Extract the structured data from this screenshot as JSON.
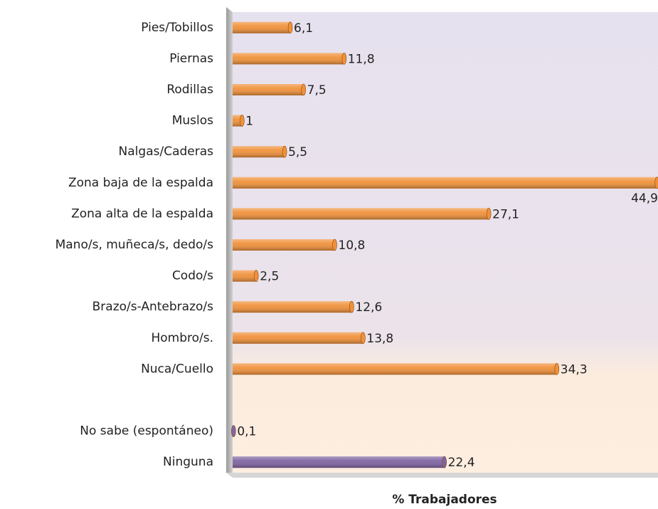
{
  "chart_data": {
    "type": "hbar",
    "categories": [
      "Pies/Tobillos",
      "Piernas",
      "Rodillas",
      "Muslos",
      "Nalgas/Caderas",
      "Zona baja de la espalda",
      "Zona alta de la espalda",
      "Mano/s, muñeca/s, dedo/s",
      "Codo/s",
      "Brazo/s-Antebrazo/s",
      "Hombro/s.",
      "Nuca/Cuello",
      null,
      "No sabe (espontáneo)",
      "Ninguna"
    ],
    "values": [
      6.1,
      11.8,
      7.5,
      1,
      5.5,
      44.9,
      27.1,
      10.8,
      2.5,
      12.6,
      13.8,
      34.3,
      null,
      0.1,
      22.4
    ],
    "value_labels": [
      "6,1",
      "11,8",
      "7,5",
      "1",
      "5,5",
      "44,9",
      "27,1",
      "10,8",
      "2,5",
      "12,6",
      "13,8",
      "34,3",
      null,
      "0,1",
      "22,4"
    ],
    "colors": [
      "#f0913a",
      "#f0913a",
      "#f0913a",
      "#f0913a",
      "#f0913a",
      "#f0913a",
      "#f0913a",
      "#f0913a",
      "#f0913a",
      "#f0913a",
      "#f0913a",
      "#f0913a",
      null,
      "#8064a2",
      "#8064a2"
    ],
    "xlim": [
      0,
      45
    ],
    "xlabel": "% Trabajadores"
  }
}
